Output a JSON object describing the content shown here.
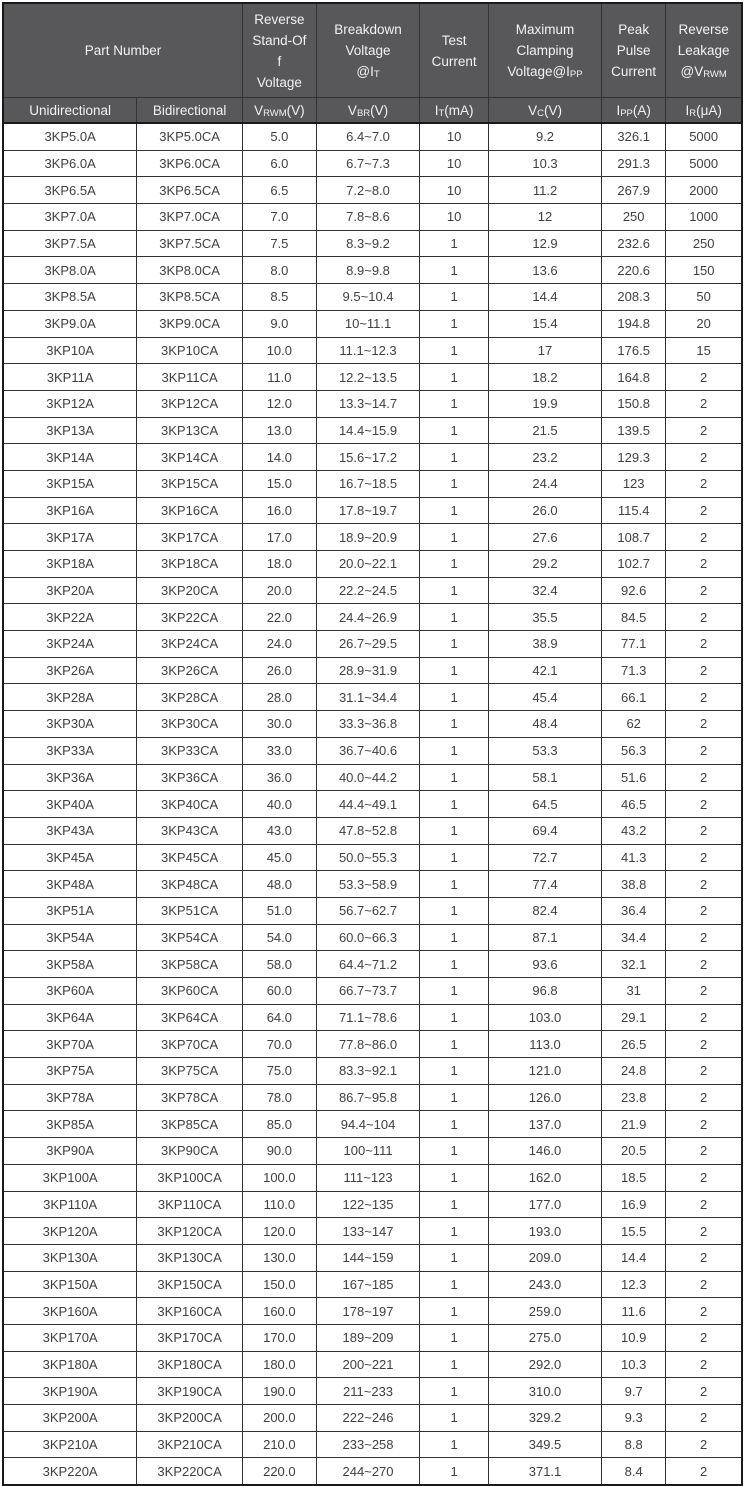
{
  "colors": {
    "header_bg": "#58585a",
    "header_text": "#f2f2f2",
    "body_text": "#404040",
    "grid_border": "#333333",
    "outer_border": "#1a1a1a",
    "body_bg": "#ffffff"
  },
  "table": {
    "header": {
      "part_number": "Part Number",
      "groups": [
        {
          "lines": [
            "Reverse",
            "Stand-Of",
            "f",
            "Voltage"
          ]
        },
        {
          "lines": [
            "Breakdown",
            "Voltage"
          ],
          "sub_line": {
            "pre": "@I",
            "sub": "T",
            "post": ""
          }
        },
        {
          "lines": [
            "Test",
            "Current"
          ]
        },
        {
          "lines": [
            "Maximum",
            "Clamping"
          ],
          "sub_line": {
            "pre": "Voltage@I",
            "sub": "PP",
            "post": ""
          }
        },
        {
          "lines": [
            "Peak",
            "Pulse",
            "Current"
          ]
        },
        {
          "lines": [
            "Reverse",
            "Leakage"
          ],
          "sub_line": {
            "pre": "@V",
            "sub": "RWM",
            "post": ""
          }
        }
      ],
      "units": [
        {
          "pre": "Unidirectional",
          "sub": "",
          "post": ""
        },
        {
          "pre": "Bidirectional",
          "sub": "",
          "post": ""
        },
        {
          "pre": "V",
          "sub": "RWM",
          "post": "(V)"
        },
        {
          "pre": "V",
          "sub": "BR",
          "post": "(V)"
        },
        {
          "pre": "I",
          "sub": "T",
          "post": "(mA)"
        },
        {
          "pre": "V",
          "sub": "C",
          "post": "(V)"
        },
        {
          "pre": "I",
          "sub": "PP",
          "post": "(A)"
        },
        {
          "pre": "I",
          "sub": "R",
          "post": "(μA)"
        }
      ]
    },
    "rows": [
      [
        "3KP5.0A",
        "3KP5.0CA",
        "5.0",
        "6.4~7.0",
        "10",
        "9.2",
        "326.1",
        "5000"
      ],
      [
        "3KP6.0A",
        "3KP6.0CA",
        "6.0",
        "6.7~7.3",
        "10",
        "10.3",
        "291.3",
        "5000"
      ],
      [
        "3KP6.5A",
        "3KP6.5CA",
        "6.5",
        "7.2~8.0",
        "10",
        "11.2",
        "267.9",
        "2000"
      ],
      [
        "3KP7.0A",
        "3KP7.0CA",
        "7.0",
        "7.8~8.6",
        "10",
        "12",
        "250",
        "1000"
      ],
      [
        "3KP7.5A",
        "3KP7.5CA",
        "7.5",
        "8.3~9.2",
        "1",
        "12.9",
        "232.6",
        "250"
      ],
      [
        "3KP8.0A",
        "3KP8.0CA",
        "8.0",
        "8.9~9.8",
        "1",
        "13.6",
        "220.6",
        "150"
      ],
      [
        "3KP8.5A",
        "3KP8.5CA",
        "8.5",
        "9.5~10.4",
        "1",
        "14.4",
        "208.3",
        "50"
      ],
      [
        "3KP9.0A",
        "3KP9.0CA",
        "9.0",
        "10~11.1",
        "1",
        "15.4",
        "194.8",
        "20"
      ],
      [
        "3KP10A",
        "3KP10CA",
        "10.0",
        "11.1~12.3",
        "1",
        "17",
        "176.5",
        "15"
      ],
      [
        "3KP11A",
        "3KP11CA",
        "11.0",
        "12.2~13.5",
        "1",
        "18.2",
        "164.8",
        "2"
      ],
      [
        "3KP12A",
        "3KP12CA",
        "12.0",
        "13.3~14.7",
        "1",
        "19.9",
        "150.8",
        "2"
      ],
      [
        "3KP13A",
        "3KP13CA",
        "13.0",
        "14.4~15.9",
        "1",
        "21.5",
        "139.5",
        "2"
      ],
      [
        "3KP14A",
        "3KP14CA",
        "14.0",
        "15.6~17.2",
        "1",
        "23.2",
        "129.3",
        "2"
      ],
      [
        "3KP15A",
        "3KP15CA",
        "15.0",
        "16.7~18.5",
        "1",
        "24.4",
        "123",
        "2"
      ],
      [
        "3KP16A",
        "3KP16CA",
        "16.0",
        "17.8~19.7",
        "1",
        "26.0",
        "115.4",
        "2"
      ],
      [
        "3KP17A",
        "3KP17CA",
        "17.0",
        "18.9~20.9",
        "1",
        "27.6",
        "108.7",
        "2"
      ],
      [
        "3KP18A",
        "3KP18CA",
        "18.0",
        "20.0~22.1",
        "1",
        "29.2",
        "102.7",
        "2"
      ],
      [
        "3KP20A",
        "3KP20CA",
        "20.0",
        "22.2~24.5",
        "1",
        "32.4",
        "92.6",
        "2"
      ],
      [
        "3KP22A",
        "3KP22CA",
        "22.0",
        "24.4~26.9",
        "1",
        "35.5",
        "84.5",
        "2"
      ],
      [
        "3KP24A",
        "3KP24CA",
        "24.0",
        "26.7~29.5",
        "1",
        "38.9",
        "77.1",
        "2"
      ],
      [
        "3KP26A",
        "3KP26CA",
        "26.0",
        "28.9~31.9",
        "1",
        "42.1",
        "71.3",
        "2"
      ],
      [
        "3KP28A",
        "3KP28CA",
        "28.0",
        "31.1~34.4",
        "1",
        "45.4",
        "66.1",
        "2"
      ],
      [
        "3KP30A",
        "3KP30CA",
        "30.0",
        "33.3~36.8",
        "1",
        "48.4",
        "62",
        "2"
      ],
      [
        "3KP33A",
        "3KP33CA",
        "33.0",
        "36.7~40.6",
        "1",
        "53.3",
        "56.3",
        "2"
      ],
      [
        "3KP36A",
        "3KP36CA",
        "36.0",
        "40.0~44.2",
        "1",
        "58.1",
        "51.6",
        "2"
      ],
      [
        "3KP40A",
        "3KP40CA",
        "40.0",
        "44.4~49.1",
        "1",
        "64.5",
        "46.5",
        "2"
      ],
      [
        "3KP43A",
        "3KP43CA",
        "43.0",
        "47.8~52.8",
        "1",
        "69.4",
        "43.2",
        "2"
      ],
      [
        "3KP45A",
        "3KP45CA",
        "45.0",
        "50.0~55.3",
        "1",
        "72.7",
        "41.3",
        "2"
      ],
      [
        "3KP48A",
        "3KP48CA",
        "48.0",
        "53.3~58.9",
        "1",
        "77.4",
        "38.8",
        "2"
      ],
      [
        "3KP51A",
        "3KP51CA",
        "51.0",
        "56.7~62.7",
        "1",
        "82.4",
        "36.4",
        "2"
      ],
      [
        "3KP54A",
        "3KP54CA",
        "54.0",
        "60.0~66.3",
        "1",
        "87.1",
        "34.4",
        "2"
      ],
      [
        "3KP58A",
        "3KP58CA",
        "58.0",
        "64.4~71.2",
        "1",
        "93.6",
        "32.1",
        "2"
      ],
      [
        "3KP60A",
        "3KP60CA",
        "60.0",
        "66.7~73.7",
        "1",
        "96.8",
        "31",
        "2"
      ],
      [
        "3KP64A",
        "3KP64CA",
        "64.0",
        "71.1~78.6",
        "1",
        "103.0",
        "29.1",
        "2"
      ],
      [
        "3KP70A",
        "3KP70CA",
        "70.0",
        "77.8~86.0",
        "1",
        "113.0",
        "26.5",
        "2"
      ],
      [
        "3KP75A",
        "3KP75CA",
        "75.0",
        "83.3~92.1",
        "1",
        "121.0",
        "24.8",
        "2"
      ],
      [
        "3KP78A",
        "3KP78CA",
        "78.0",
        "86.7~95.8",
        "1",
        "126.0",
        "23.8",
        "2"
      ],
      [
        "3KP85A",
        "3KP85CA",
        "85.0",
        "94.4~104",
        "1",
        "137.0",
        "21.9",
        "2"
      ],
      [
        "3KP90A",
        "3KP90CA",
        "90.0",
        "100~111",
        "1",
        "146.0",
        "20.5",
        "2"
      ],
      [
        "3KP100A",
        "3KP100CA",
        "100.0",
        "111~123",
        "1",
        "162.0",
        "18.5",
        "2"
      ],
      [
        "3KP110A",
        "3KP110CA",
        "110.0",
        "122~135",
        "1",
        "177.0",
        "16.9",
        "2"
      ],
      [
        "3KP120A",
        "3KP120CA",
        "120.0",
        "133~147",
        "1",
        "193.0",
        "15.5",
        "2"
      ],
      [
        "3KP130A",
        "3KP130CA",
        "130.0",
        "144~159",
        "1",
        "209.0",
        "14.4",
        "2"
      ],
      [
        "3KP150A",
        "3KP150CA",
        "150.0",
        "167~185",
        "1",
        "243.0",
        "12.3",
        "2"
      ],
      [
        "3KP160A",
        "3KP160CA",
        "160.0",
        "178~197",
        "1",
        "259.0",
        "11.6",
        "2"
      ],
      [
        "3KP170A",
        "3KP170CA",
        "170.0",
        "189~209",
        "1",
        "275.0",
        "10.9",
        "2"
      ],
      [
        "3KP180A",
        "3KP180CA",
        "180.0",
        "200~221",
        "1",
        "292.0",
        "10.3",
        "2"
      ],
      [
        "3KP190A",
        "3KP190CA",
        "190.0",
        "211~233",
        "1",
        "310.0",
        "9.7",
        "2"
      ],
      [
        "3KP200A",
        "3KP200CA",
        "200.0",
        "222~246",
        "1",
        "329.2",
        "9.3",
        "2"
      ],
      [
        "3KP210A",
        "3KP210CA",
        "210.0",
        "233~258",
        "1",
        "349.5",
        "8.8",
        "2"
      ],
      [
        "3KP220A",
        "3KP220CA",
        "220.0",
        "244~270",
        "1",
        "371.1",
        "8.4",
        "2"
      ]
    ]
  }
}
